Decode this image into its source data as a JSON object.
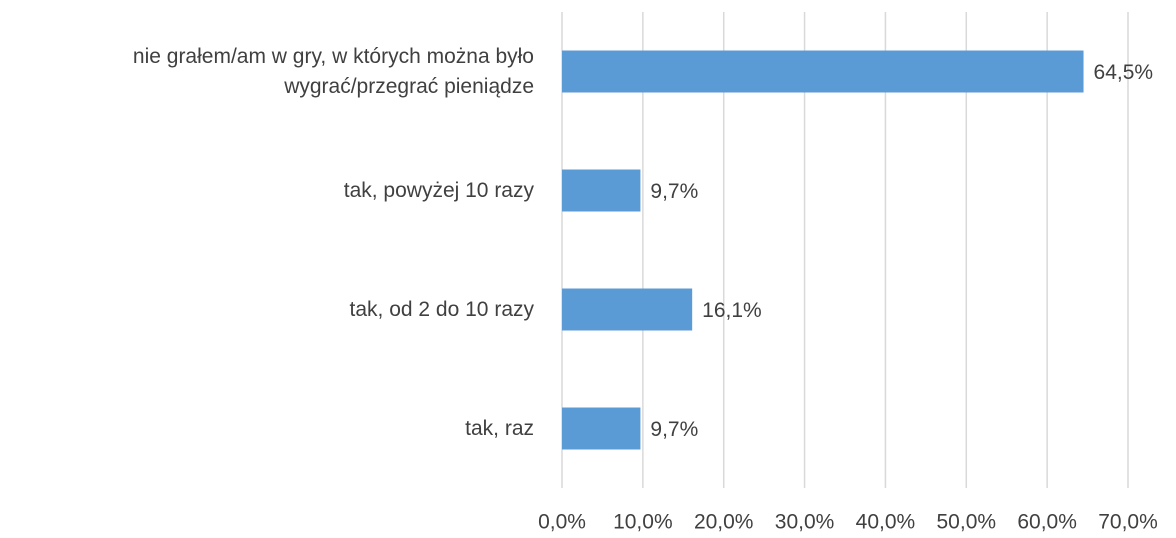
{
  "chart_data": {
    "type": "bar",
    "orientation": "horizontal",
    "categories": [
      "nie grałem/am w gry, w których można było wygrać/przegrać pieniądze",
      "tak, powyżej 10 razy",
      "tak, od 2 do 10 razy",
      "tak, raz"
    ],
    "values": [
      64.5,
      9.7,
      16.1,
      9.7
    ],
    "value_labels": [
      "64,5%",
      "9,7%",
      "16,1%",
      "9,7%"
    ],
    "color": "#5b9bd5",
    "xlim": [
      0,
      70
    ],
    "xticks": [
      {
        "value": 0,
        "label": "0,0%"
      },
      {
        "value": 10,
        "label": "10,0%"
      },
      {
        "value": 20,
        "label": "20,0%"
      },
      {
        "value": 30,
        "label": "30,0%"
      },
      {
        "value": 40,
        "label": "40,0%"
      },
      {
        "value": 50,
        "label": "50,0%"
      },
      {
        "value": 60,
        "label": "60,0%"
      },
      {
        "value": 70,
        "label": "70,0%"
      }
    ],
    "grid": true
  }
}
